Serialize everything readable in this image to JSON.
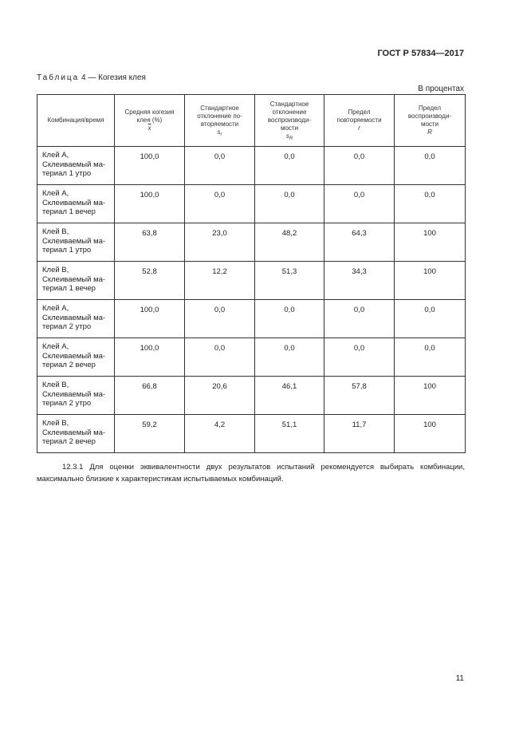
{
  "header": {
    "standard": "ГОСТ Р 57834—2017"
  },
  "caption": {
    "label": "Таблица",
    "number": "4",
    "title": "— Когезия клея"
  },
  "unit": "В процентах",
  "table": {
    "columns": [
      {
        "text": "Комбинация/время",
        "symbol": ""
      },
      {
        "text": "Средняя когезия\nклея (%)",
        "symbol": "x"
      },
      {
        "text": "Стандартное\nотклонение по-\nвторяемости",
        "symbol": "sr"
      },
      {
        "text": "Стандартное\nотклонение\nвоспроизводи-\nмости",
        "symbol": "sR"
      },
      {
        "text": "Предел\nповторяемости",
        "symbol": "r"
      },
      {
        "text": "Предел\nвоспроизводи-\nмости",
        "symbol": "R"
      }
    ],
    "rows": [
      {
        "name": "Клей А,\nСклеиваемый ма-\nтериал 1 утро",
        "values": [
          "100,0",
          "0,0",
          "0,0",
          "0,0",
          "0,0"
        ]
      },
      {
        "name": "Клей А,\nСклеиваемый ма-\nтериал 1 вечер",
        "values": [
          "100,0",
          "0,0",
          "0,0",
          "0,0",
          "0,0"
        ]
      },
      {
        "name": "Клей В,\nСклеиваемый ма-\nтериал 1 утро",
        "values": [
          "63,8",
          "23,0",
          "48,2",
          "64,3",
          "100"
        ]
      },
      {
        "name": "Клей В,\nСклеиваемый ма-\nтериал 1 вечер",
        "values": [
          "52,8",
          "12,2",
          "51,3",
          "34,3",
          "100"
        ]
      },
      {
        "name": "Клей А,\nСклеиваемый ма-\nтериал 2 утро",
        "values": [
          "100,0",
          "0,0",
          "0,0",
          "0,0",
          "0,0"
        ]
      },
      {
        "name": "Клей А,\nСклеиваемый ма-\nтериал 2 вечер",
        "values": [
          "100,0",
          "0,0",
          "0,0",
          "0,0",
          "0,0"
        ]
      },
      {
        "name": "Клей В,\nСклеиваемый ма-\nтериал 2 утро",
        "values": [
          "66,8",
          "20,6",
          "46,1",
          "57,8",
          "100"
        ]
      },
      {
        "name": "Клей В,\nСклеиваемый ма-\nтериал 2 вечер",
        "values": [
          "59,2",
          "4,2",
          "51,1",
          "11,7",
          "100"
        ]
      }
    ]
  },
  "paragraph": "12.3.1 Для оценки эквивалентности двух результатов испытаний рекомендуется выбирать комбинации, максимально близкие к характеристикам испытываемых комбинаций.",
  "page_number": "11"
}
